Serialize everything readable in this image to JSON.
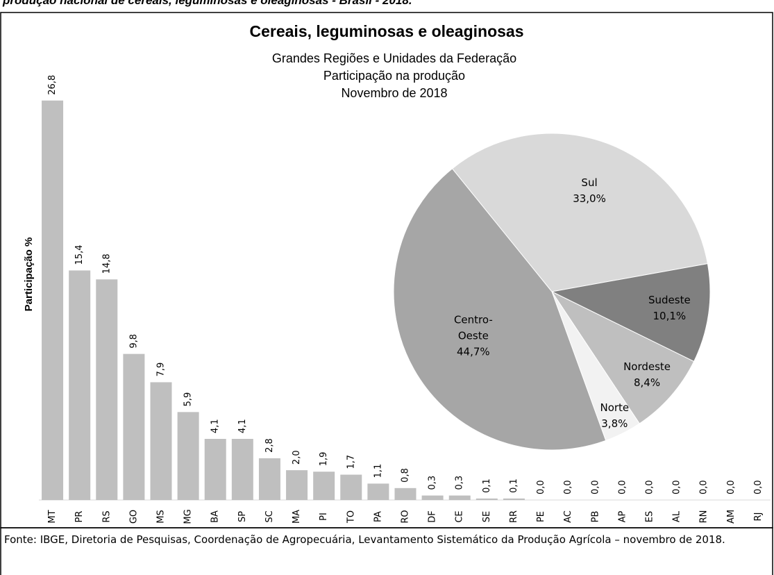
{
  "header": "produção nacional de cereais, leguminosas e oleaginosas - Brasil - 2018.",
  "footer": "Fonte: IBGE, Diretoria de Pesquisas, Coordenação de Agropecuária, Levantamento Sistemático da Produção Agrícola – novembro de 2018.",
  "chart_data": [
    {
      "type": "bar",
      "title": "Cereais, leguminosas e oleaginosas",
      "subtitle": [
        "Grandes Regiões e Unidades da Federação",
        "Participação na produção",
        "Novembro de 2018"
      ],
      "y_label": "Participação %",
      "categories": [
        "MT",
        "PR",
        "RS",
        "GO",
        "MS",
        "MG",
        "BA",
        "SP",
        "SC",
        "MA",
        "PI",
        "TO",
        "PA",
        "RO",
        "DF",
        "CE",
        "SE",
        "RR",
        "PE",
        "AC",
        "PB",
        "AP",
        "ES",
        "AL",
        "RN",
        "AM",
        "RJ"
      ],
      "values": [
        26.8,
        15.4,
        14.8,
        9.8,
        7.9,
        5.9,
        4.1,
        4.1,
        2.8,
        2.0,
        1.9,
        1.7,
        1.1,
        0.8,
        0.3,
        0.3,
        0.1,
        0.1,
        0,
        0,
        0,
        0,
        0,
        0,
        0,
        0,
        0
      ],
      "value_labels": [
        "26,8",
        "15,4",
        "14,8",
        "9,8",
        "7,9",
        "5,9",
        "4,1",
        "4,1",
        "2,8",
        "2,0",
        "1,9",
        "1,7",
        "1,1",
        "0,8",
        "0,3",
        "0,3",
        "0,1",
        "0,1",
        "0,0",
        "0,0",
        "0,0",
        "0,0",
        "0,0",
        "0,0",
        "0,0",
        "0,0",
        "0,0"
      ],
      "color": "#bfbfbf",
      "ylim": [
        0,
        28
      ]
    },
    {
      "type": "pie",
      "categories": [
        "Sul",
        "Sudeste",
        "Nordeste",
        "Norte",
        "Centro-Oeste"
      ],
      "values": [
        33.0,
        10.1,
        8.4,
        3.8,
        44.7
      ],
      "value_labels": [
        "33,0%",
        "10,1%",
        "8,4%",
        "3,8%",
        "44,7%"
      ],
      "colors": [
        "#d9d9d9",
        "#808080",
        "#bfbfbf",
        "#f2f2f2",
        "#a6a6a6"
      ]
    }
  ]
}
